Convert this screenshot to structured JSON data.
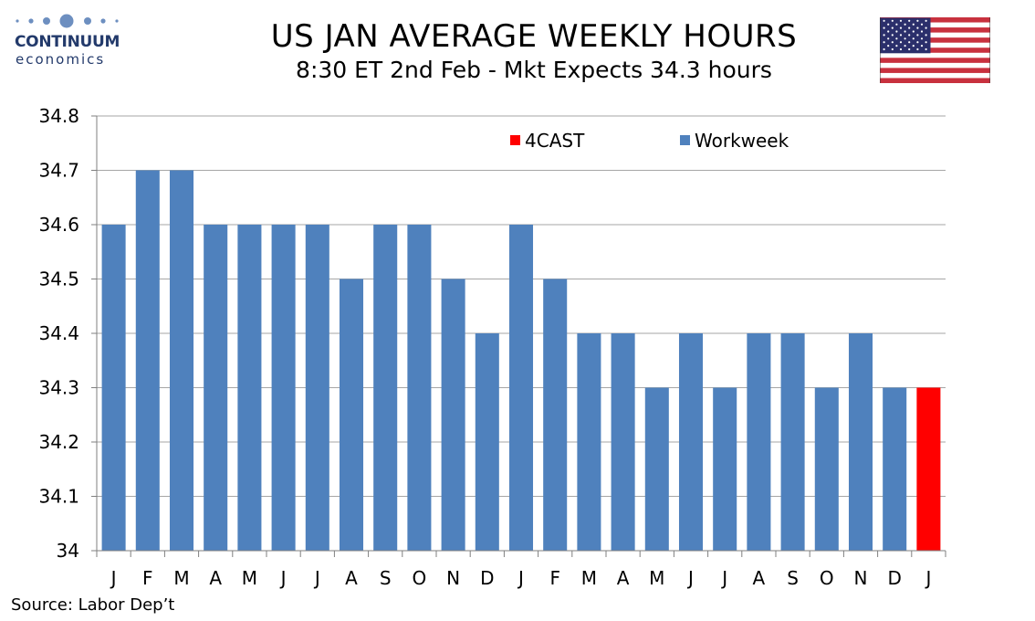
{
  "logo": {
    "name": "CONTINUUM",
    "sub": "economics"
  },
  "header": {
    "title": "US JAN AVERAGE WEEKLY HOURS",
    "subtitle": "8:30 ET 2nd Feb - Mkt Expects 34.3 hours"
  },
  "flag": {
    "name": "us-flag-icon"
  },
  "chart_data": {
    "type": "bar",
    "title": "US JAN AVERAGE WEEKLY HOURS",
    "subtitle": "8:30 ET 2nd Feb - Mkt Expects 34.3 hours",
    "categories": [
      "J",
      "F",
      "M",
      "A",
      "M",
      "J",
      "J",
      "A",
      "S",
      "O",
      "N",
      "D",
      "J",
      "F",
      "M",
      "A",
      "M",
      "J",
      "J",
      "A",
      "S",
      "O",
      "N",
      "D",
      "J"
    ],
    "series": [
      {
        "name": "Workweek",
        "color": "#4f81bd",
        "values": [
          34.6,
          34.7,
          34.7,
          34.6,
          34.6,
          34.6,
          34.6,
          34.5,
          34.6,
          34.6,
          34.5,
          34.4,
          34.6,
          34.5,
          34.4,
          34.4,
          34.3,
          34.4,
          34.3,
          34.4,
          34.4,
          34.3,
          34.4,
          34.3,
          null
        ]
      },
      {
        "name": "4CAST",
        "color": "#ff0000",
        "values": [
          null,
          null,
          null,
          null,
          null,
          null,
          null,
          null,
          null,
          null,
          null,
          null,
          null,
          null,
          null,
          null,
          null,
          null,
          null,
          null,
          null,
          null,
          null,
          null,
          34.3
        ]
      }
    ],
    "ylim": [
      34.0,
      34.8
    ],
    "yticks": [
      34,
      34.1,
      34.2,
      34.3,
      34.4,
      34.5,
      34.6,
      34.7,
      34.8
    ],
    "ytick_labels": [
      "34",
      "34.1",
      "34.2",
      "34.3",
      "34.4",
      "34.5",
      "34.6",
      "34.7",
      "34.8"
    ],
    "grid": true,
    "legend_position": "top-right"
  },
  "source": "Source: Labor Dep’t"
}
